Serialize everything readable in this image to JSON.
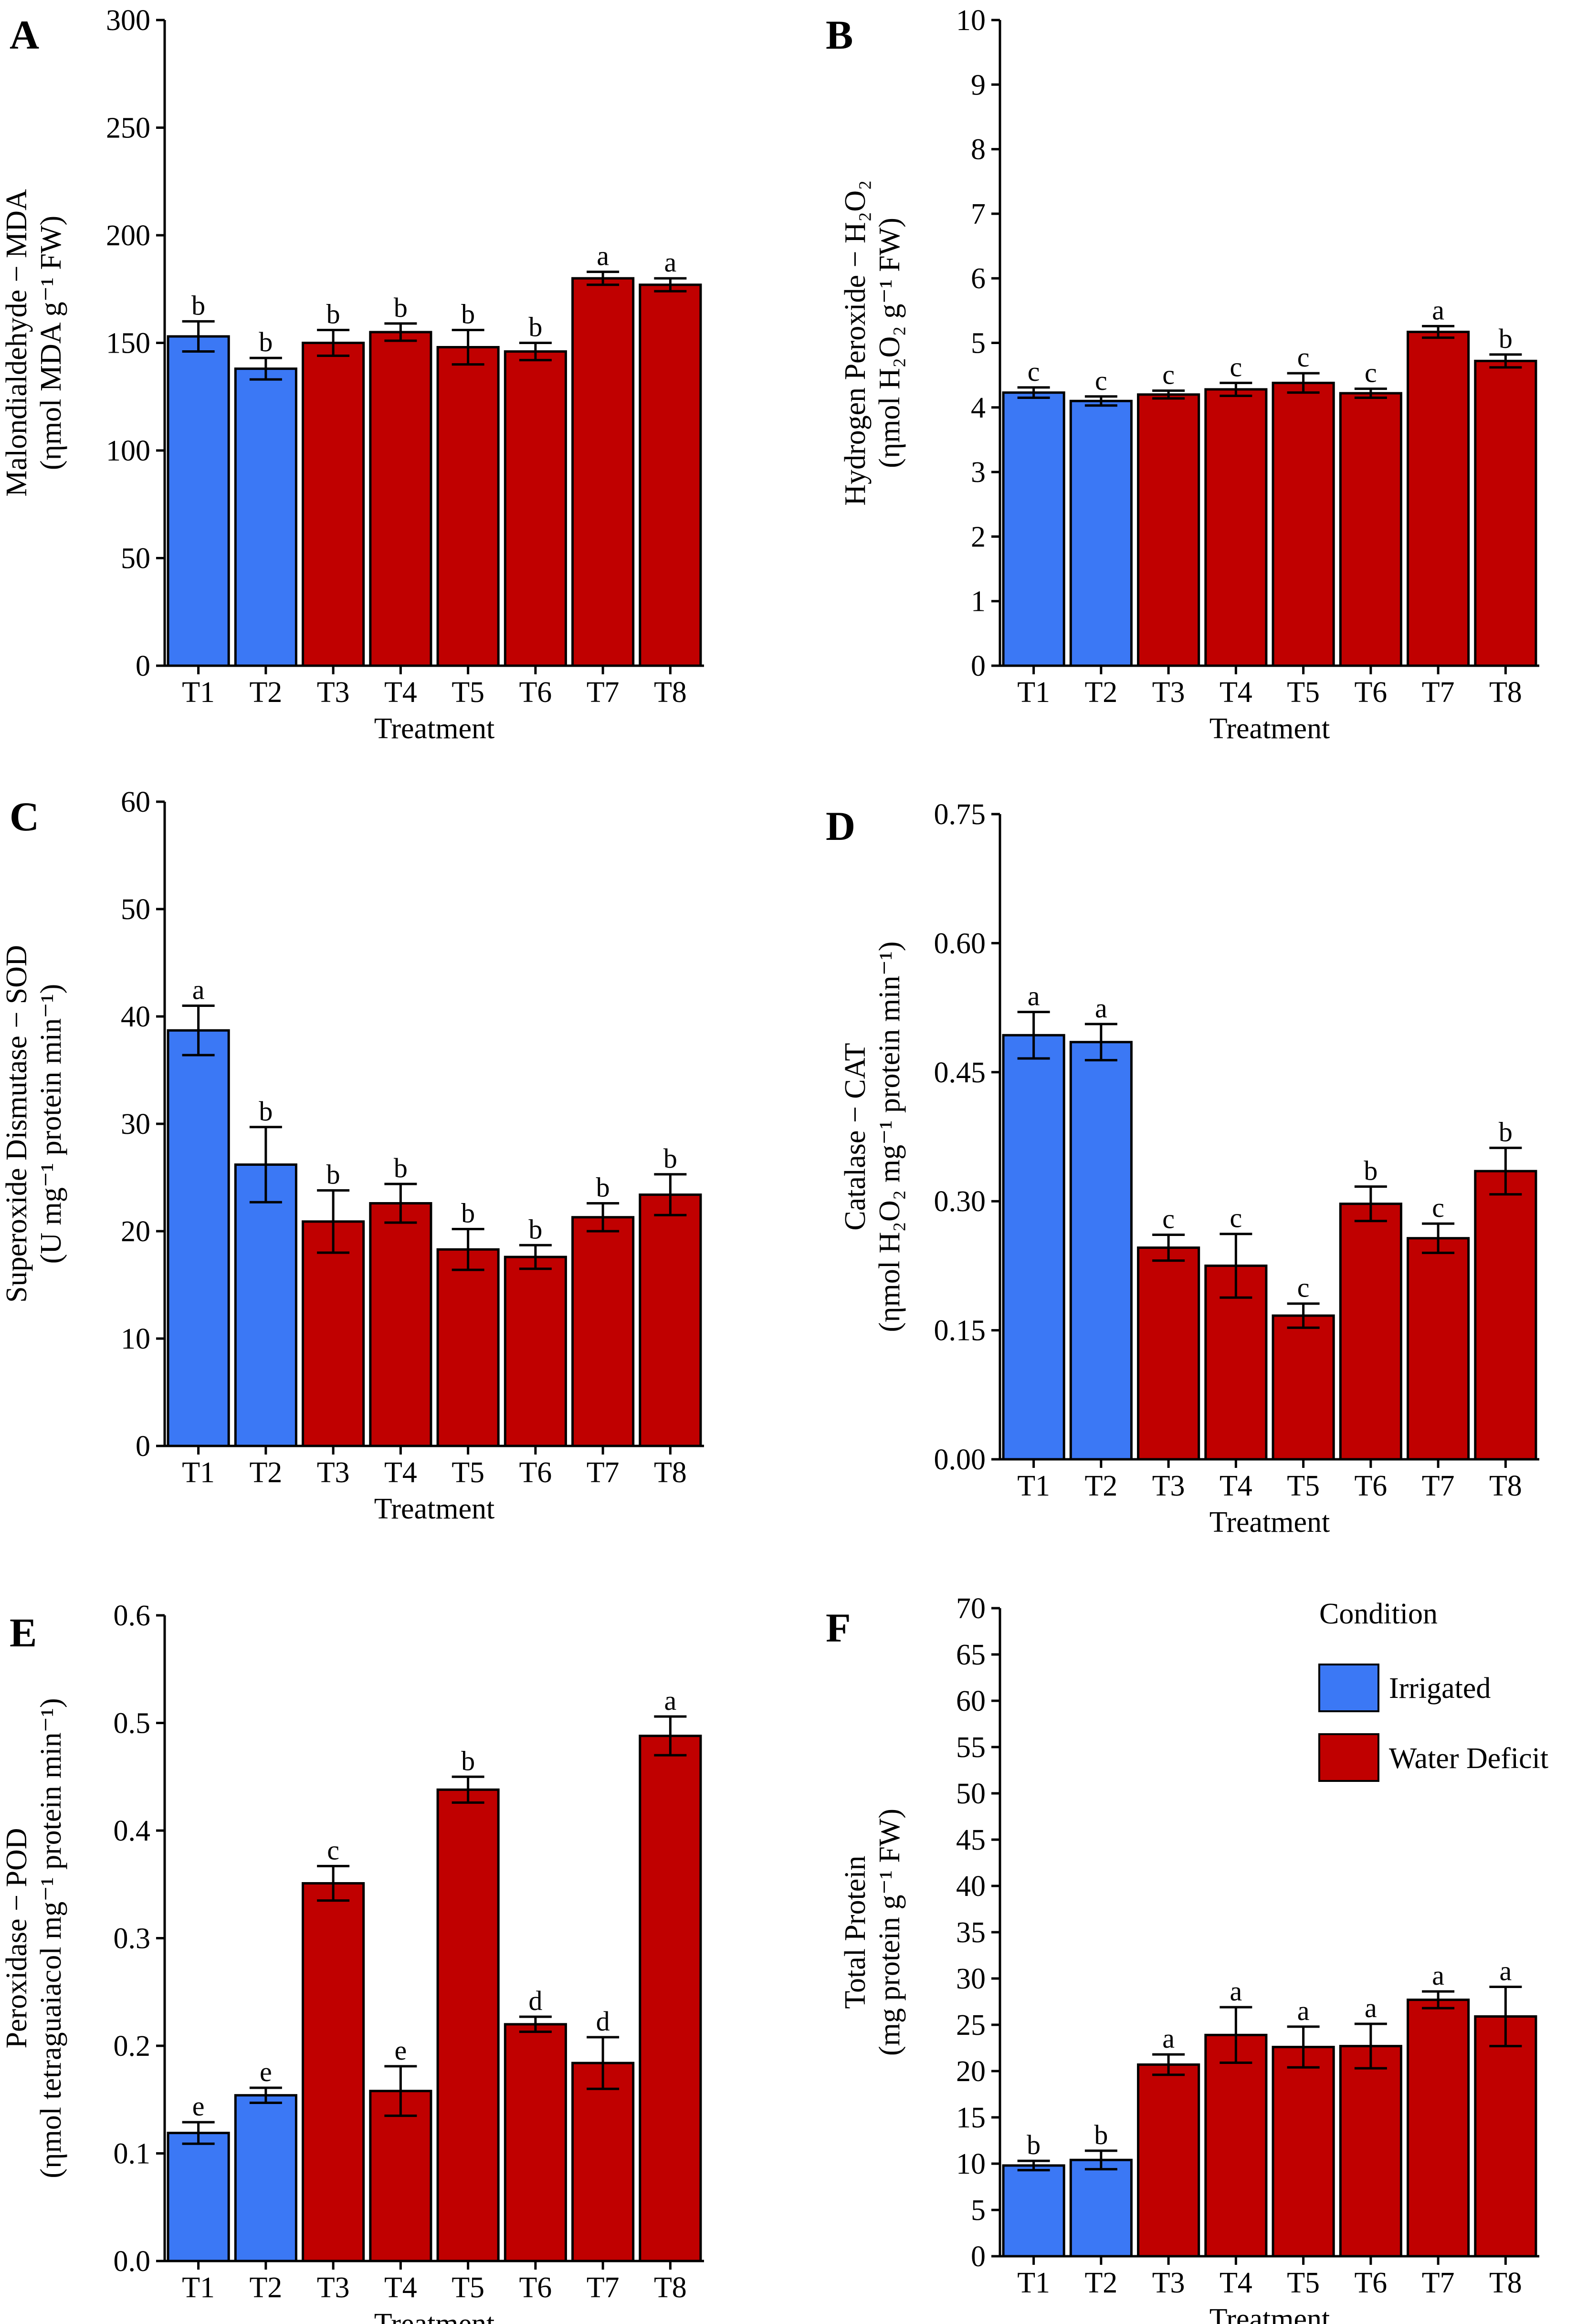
{
  "figure": {
    "legend": {
      "title": "Condition",
      "items": [
        {
          "label": "Irrigated",
          "color": "#3b78f5"
        },
        {
          "label": "Water Deficit",
          "color": "#c00000"
        }
      ]
    }
  },
  "chart_data": [
    {
      "panel": "A",
      "type": "bar",
      "categories": [
        "T1",
        "T2",
        "T3",
        "T4",
        "T5",
        "T6",
        "T7",
        "T8"
      ],
      "conditions": [
        "Irrigated",
        "Irrigated",
        "Water Deficit",
        "Water Deficit",
        "Water Deficit",
        "Water Deficit",
        "Water Deficit",
        "Water Deficit"
      ],
      "values": [
        153,
        138,
        150,
        155,
        148,
        146,
        180,
        177
      ],
      "errors": [
        7,
        5,
        6,
        4,
        8,
        4,
        3,
        3
      ],
      "letters": [
        "b",
        "b",
        "b",
        "b",
        "b",
        "b",
        "a",
        "a"
      ],
      "ylim": [
        0,
        300
      ],
      "yticks": [
        0,
        50,
        100,
        150,
        200,
        250,
        300
      ],
      "ytick_labels": [
        "0",
        "50",
        "100",
        "150",
        "200",
        "250",
        "300"
      ],
      "ylabel": [
        "Malondialdehyde − MDA",
        "(ηmol MDA g⁻¹ FW)"
      ],
      "xlabel": "Treatment"
    },
    {
      "panel": "B",
      "type": "bar",
      "categories": [
        "T1",
        "T2",
        "T3",
        "T4",
        "T5",
        "T6",
        "T7",
        "T8"
      ],
      "conditions": [
        "Irrigated",
        "Irrigated",
        "Water Deficit",
        "Water Deficit",
        "Water Deficit",
        "Water Deficit",
        "Water Deficit",
        "Water Deficit"
      ],
      "values": [
        4.23,
        4.1,
        4.2,
        4.28,
        4.38,
        4.22,
        5.17,
        4.72
      ],
      "errors": [
        0.08,
        0.07,
        0.06,
        0.1,
        0.15,
        0.07,
        0.09,
        0.1
      ],
      "letters": [
        "c",
        "c",
        "c",
        "c",
        "c",
        "c",
        "a",
        "b"
      ],
      "ylim": [
        0,
        10
      ],
      "yticks": [
        0,
        1,
        2,
        3,
        4,
        5,
        6,
        7,
        8,
        9,
        10
      ],
      "ytick_labels": [
        "0",
        "1",
        "2",
        "3",
        "4",
        "5",
        "6",
        "7",
        "8",
        "9",
        "10"
      ],
      "ylabel": [
        "Hydrogen Peroxide − H₂O₂",
        "(ηmol H₂O₂ g⁻¹ FW)"
      ],
      "xlabel": "Treatment"
    },
    {
      "panel": "C",
      "type": "bar",
      "categories": [
        "T1",
        "T2",
        "T3",
        "T4",
        "T5",
        "T6",
        "T7",
        "T8"
      ],
      "conditions": [
        "Irrigated",
        "Irrigated",
        "Water Deficit",
        "Water Deficit",
        "Water Deficit",
        "Water Deficit",
        "Water Deficit",
        "Water Deficit"
      ],
      "values": [
        38.7,
        26.2,
        20.9,
        22.6,
        18.3,
        17.6,
        21.3,
        23.4
      ],
      "errors": [
        2.3,
        3.5,
        2.9,
        1.8,
        1.9,
        1.1,
        1.3,
        1.9
      ],
      "letters": [
        "a",
        "b",
        "b",
        "b",
        "b",
        "b",
        "b",
        "b"
      ],
      "ylim": [
        0,
        60
      ],
      "yticks": [
        0,
        10,
        20,
        30,
        40,
        50,
        60
      ],
      "ytick_labels": [
        "0",
        "10",
        "20",
        "30",
        "40",
        "50",
        "60"
      ],
      "ylabel": [
        "Superoxide Dismutase − SOD",
        "(U mg⁻¹ protein min⁻¹)"
      ],
      "xlabel": "Treatment"
    },
    {
      "panel": "D",
      "type": "bar",
      "categories": [
        "T1",
        "T2",
        "T3",
        "T4",
        "T5",
        "T6",
        "T7",
        "T8"
      ],
      "conditions": [
        "Irrigated",
        "Irrigated",
        "Water Deficit",
        "Water Deficit",
        "Water Deficit",
        "Water Deficit",
        "Water Deficit",
        "Water Deficit"
      ],
      "values": [
        0.493,
        0.485,
        0.246,
        0.225,
        0.167,
        0.297,
        0.257,
        0.335
      ],
      "errors": [
        0.027,
        0.021,
        0.015,
        0.037,
        0.014,
        0.02,
        0.017,
        0.027
      ],
      "letters": [
        "a",
        "a",
        "c",
        "c",
        "c",
        "b",
        "c",
        "b"
      ],
      "ylim": [
        0,
        0.75
      ],
      "yticks": [
        0,
        0.15,
        0.3,
        0.45,
        0.6,
        0.75
      ],
      "ytick_labels": [
        "0.00",
        "0.15",
        "0.30",
        "0.45",
        "0.60",
        "0.75"
      ],
      "ylabel": [
        "Catalase − CAT",
        "(ηmol H₂O₂ mg⁻¹ protein min⁻¹)"
      ],
      "xlabel": "Treatment"
    },
    {
      "panel": "E",
      "type": "bar",
      "categories": [
        "T1",
        "T2",
        "T3",
        "T4",
        "T5",
        "T6",
        "T7",
        "T8"
      ],
      "conditions": [
        "Irrigated",
        "Irrigated",
        "Water Deficit",
        "Water Deficit",
        "Water Deficit",
        "Water Deficit",
        "Water Deficit",
        "Water Deficit"
      ],
      "values": [
        0.119,
        0.154,
        0.351,
        0.158,
        0.438,
        0.22,
        0.184,
        0.488
      ],
      "errors": [
        0.01,
        0.007,
        0.016,
        0.023,
        0.012,
        0.007,
        0.024,
        0.018
      ],
      "letters": [
        "e",
        "e",
        "c",
        "e",
        "b",
        "d",
        "d",
        "a"
      ],
      "ylim": [
        0,
        0.6
      ],
      "yticks": [
        0,
        0.1,
        0.2,
        0.3,
        0.4,
        0.5,
        0.6
      ],
      "ytick_labels": [
        "0.0",
        "0.1",
        "0.2",
        "0.3",
        "0.4",
        "0.5",
        "0.6"
      ],
      "ylabel": [
        "Peroxidase − POD",
        "(ηmol tetraguaiacol mg⁻¹ protein min⁻¹)"
      ],
      "xlabel": "Treatment"
    },
    {
      "panel": "F",
      "type": "bar",
      "categories": [
        "T1",
        "T2",
        "T3",
        "T4",
        "T5",
        "T6",
        "T7",
        "T8"
      ],
      "conditions": [
        "Irrigated",
        "Irrigated",
        "Water Deficit",
        "Water Deficit",
        "Water Deficit",
        "Water Deficit",
        "Water Deficit",
        "Water Deficit"
      ],
      "values": [
        9.8,
        10.4,
        20.7,
        23.9,
        22.6,
        22.7,
        27.7,
        25.9
      ],
      "errors": [
        0.5,
        1.0,
        1.1,
        3.0,
        2.2,
        2.4,
        0.9,
        3.2
      ],
      "letters": [
        "b",
        "b",
        "a",
        "a",
        "a",
        "a",
        "a",
        "a"
      ],
      "ylim": [
        0,
        70
      ],
      "yticks": [
        0,
        5,
        10,
        15,
        20,
        25,
        30,
        35,
        40,
        45,
        50,
        55,
        60,
        65,
        70
      ],
      "ytick_labels": [
        "0",
        "5",
        "10",
        "15",
        "20",
        "25",
        "30",
        "35",
        "40",
        "45",
        "50",
        "55",
        "60",
        "65",
        "70"
      ],
      "ylabel": [
        "Total Protein",
        "(mg protein g⁻¹ FW)"
      ],
      "xlabel": "Treatment"
    }
  ]
}
